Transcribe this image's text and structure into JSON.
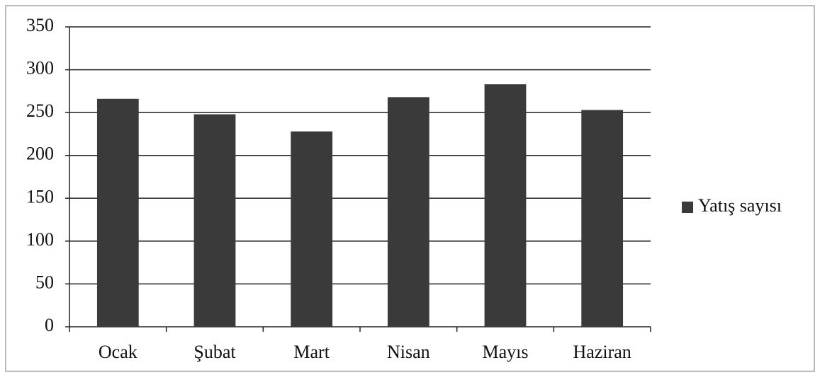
{
  "chart_data": {
    "type": "bar",
    "categories": [
      "Ocak",
      "Şubat",
      "Mart",
      "Nisan",
      "Mayıs",
      "Haziran"
    ],
    "series": [
      {
        "name": "Yatış sayısı",
        "color": "#3a3a3a",
        "values": [
          266,
          248,
          228,
          268,
          283,
          253
        ]
      }
    ],
    "ylim": [
      0,
      350
    ],
    "yticks": [
      0,
      50,
      100,
      150,
      200,
      250,
      300,
      350
    ],
    "grid": true,
    "legend": "right"
  }
}
